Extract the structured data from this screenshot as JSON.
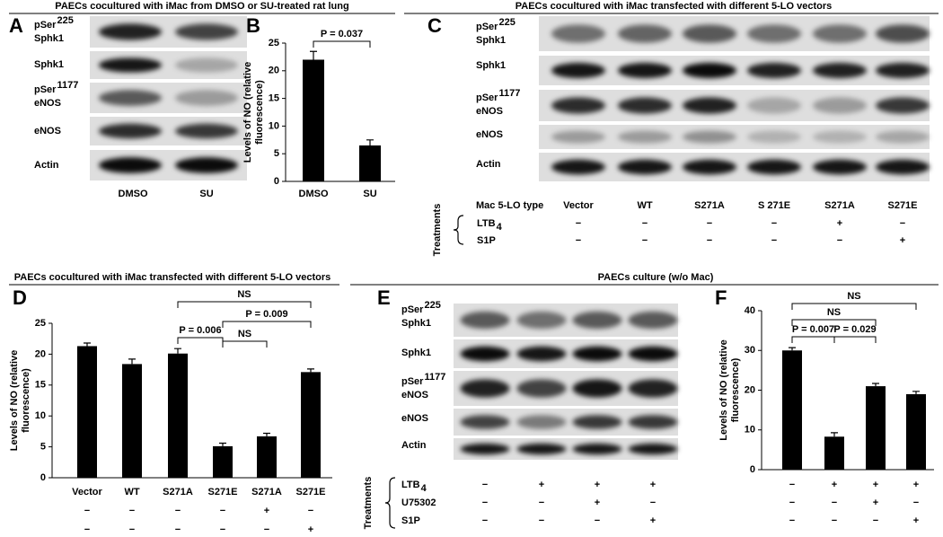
{
  "panel_a": {
    "letter": "A",
    "title": "PAECs cocultured with iMac from DMSO or SU-treated rat lung",
    "rows": [
      {
        "text": "pSer",
        "sup": "225",
        "second": "Sphk1"
      },
      {
        "text": "Sphk1"
      },
      {
        "text": "pSer",
        "sup": "1177",
        "second": "eNOS"
      },
      {
        "text": "eNOS"
      },
      {
        "text": "Actin"
      }
    ],
    "lanes": [
      "DMSO",
      "SU"
    ]
  },
  "panel_c": {
    "letter": "C",
    "title": "PAECs cocultured with iMac transfected with different 5-LO vectors",
    "rows": [
      {
        "text": "pSer",
        "sup": "225",
        "second": "Sphk1"
      },
      {
        "text": "Sphk1"
      },
      {
        "text": "pSer",
        "sup": "1177",
        "second": "eNOS"
      },
      {
        "text": "eNOS"
      },
      {
        "text": "Actin"
      }
    ],
    "lane_header": "Mac 5-LO type",
    "lanes": [
      "Vector",
      "WT",
      "S271A",
      "S 271E",
      "S271A",
      "S271E"
    ],
    "treatments_label": "Treatments",
    "treatments": [
      {
        "name": "LTB",
        "sub": "4",
        "marks": [
          "−",
          "−",
          "−",
          "−",
          "+",
          "−"
        ]
      },
      {
        "name": "S1P",
        "marks": [
          "−",
          "−",
          "−",
          "−",
          "−",
          "+"
        ]
      }
    ]
  },
  "panel_e": {
    "letter": "E",
    "title": "PAECs culture (w/o Mac)",
    "rows": [
      {
        "text": "pSer",
        "sup": "225",
        "second": "Sphk1"
      },
      {
        "text": "Sphk1"
      },
      {
        "text": "pSer",
        "sup": "1177",
        "second": "eNOS"
      },
      {
        "text": "eNOS"
      },
      {
        "text": "Actin"
      }
    ],
    "treatments_label": "Treatments",
    "treatments": [
      {
        "name": "LTB",
        "sub": "4",
        "marks": [
          "−",
          "+",
          "+",
          "+"
        ]
      },
      {
        "name": "U75302",
        "marks": [
          "−",
          "−",
          "+",
          "−"
        ]
      },
      {
        "name": "S1P",
        "marks": [
          "−",
          "−",
          "−",
          "+"
        ]
      }
    ]
  },
  "chart_data": [
    {
      "type": "bar",
      "letter": "B",
      "ylabel": [
        "Levels of NO (relative",
        "fluorescence)"
      ],
      "categories": [
        "DMSO",
        "SU"
      ],
      "values": [
        22,
        6.5
      ],
      "errors": [
        1.5,
        1
      ],
      "color": "#000000",
      "ylim": [
        0,
        25
      ],
      "yticks": [
        0,
        5,
        10,
        15,
        20,
        25
      ],
      "annotations": [
        "P = 0.037"
      ]
    },
    {
      "type": "bar",
      "letter": "D",
      "title": "PAECs cocultured with iMac transfected with different 5-LO vectors",
      "ylabel": [
        "Levels of NO (relative",
        "fluorescence)"
      ],
      "categories": [
        "Vector",
        "WT",
        "S271A",
        "S271E",
        "S271A",
        "S271E"
      ],
      "values": [
        21.3,
        18.4,
        20.1,
        5.1,
        6.7,
        17.1
      ],
      "errors": [
        0.5,
        0.8,
        0.8,
        0.5,
        0.5,
        0.5
      ],
      "color": "#000000",
      "ylim": [
        0,
        25
      ],
      "yticks": [
        0,
        5,
        10,
        15,
        20,
        25
      ],
      "treatment_rows": [
        [
          "−",
          "−",
          "−",
          "−",
          "+",
          "−"
        ],
        [
          "−",
          "−",
          "−",
          "−",
          "−",
          "+"
        ]
      ],
      "annotations": [
        "NS",
        "P = 0.009",
        "P = 0.006",
        "NS"
      ]
    },
    {
      "type": "bar",
      "letter": "F",
      "ylabel": [
        "Levels of NO (relative",
        "fluorescence)"
      ],
      "values": [
        30,
        8.3,
        21,
        19
      ],
      "errors": [
        0.7,
        1,
        0.7,
        0.7
      ],
      "color": "#000000",
      "ylim": [
        0,
        40
      ],
      "yticks": [
        0,
        10,
        20,
        30,
        40
      ],
      "treatment_rows": [
        [
          "−",
          "+",
          "+",
          "+"
        ],
        [
          "−",
          "−",
          "+",
          "−"
        ],
        [
          "−",
          "−",
          "−",
          "+"
        ]
      ],
      "annotations": [
        "NS",
        "NS",
        "P = 0.007",
        "P = 0.029"
      ]
    }
  ]
}
